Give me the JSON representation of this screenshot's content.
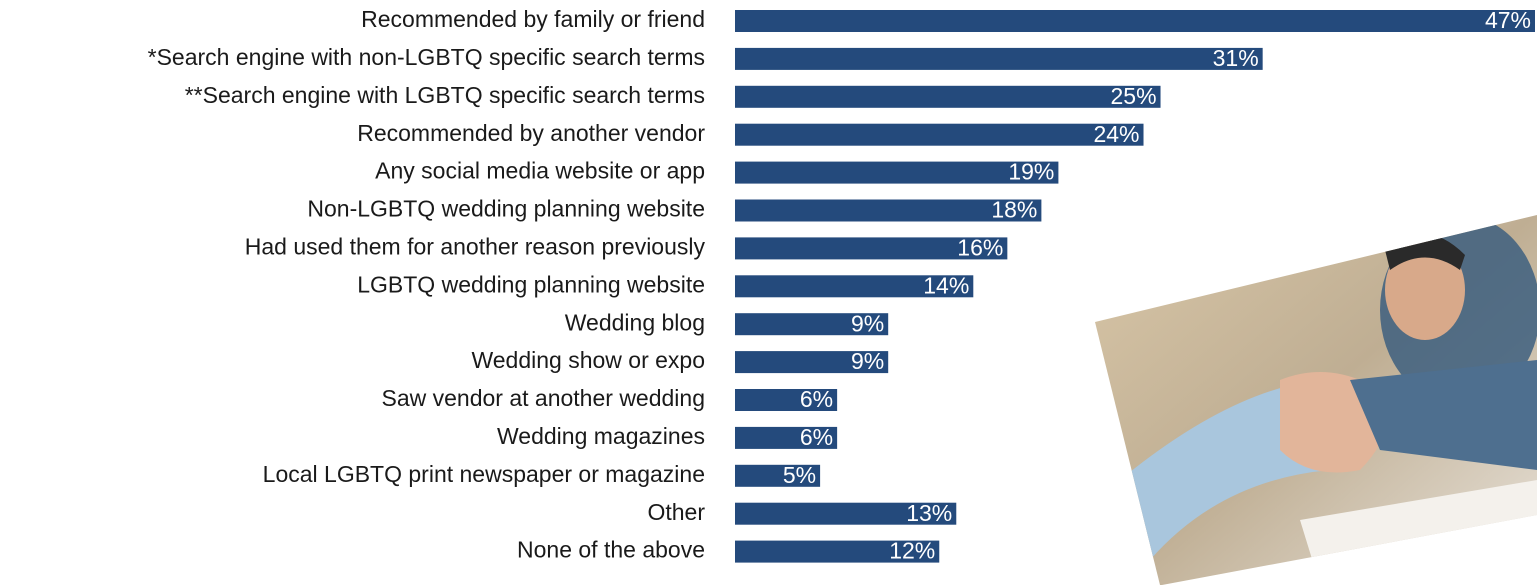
{
  "chart_data": {
    "type": "bar",
    "orientation": "horizontal",
    "color": "#244a7c",
    "categories": [
      "Recommended by family or friend",
      "*Search engine with non-LGBTQ specific search terms",
      "**Search engine with LGBTQ specific search terms",
      "Recommended by another vendor",
      "Any social media website or app",
      "Non-LGBTQ wedding planning website",
      "Had used them for another reason previously",
      "LGBTQ wedding planning website",
      "Wedding blog",
      "Wedding show or expo",
      "Saw vendor at another wedding",
      "Wedding magazines",
      "Local LGBTQ print newspaper or magazine",
      "Other",
      "None of the above"
    ],
    "values": [
      47,
      31,
      25,
      24,
      19,
      18,
      16,
      14,
      9,
      9,
      6,
      6,
      5,
      13,
      12
    ],
    "value_labels": [
      "47%",
      "31%",
      "25%",
      "24%",
      "19%",
      "18%",
      "16%",
      "14%",
      "9%",
      "9%",
      "6%",
      "6%",
      "5%",
      "13%",
      "12%"
    ]
  }
}
